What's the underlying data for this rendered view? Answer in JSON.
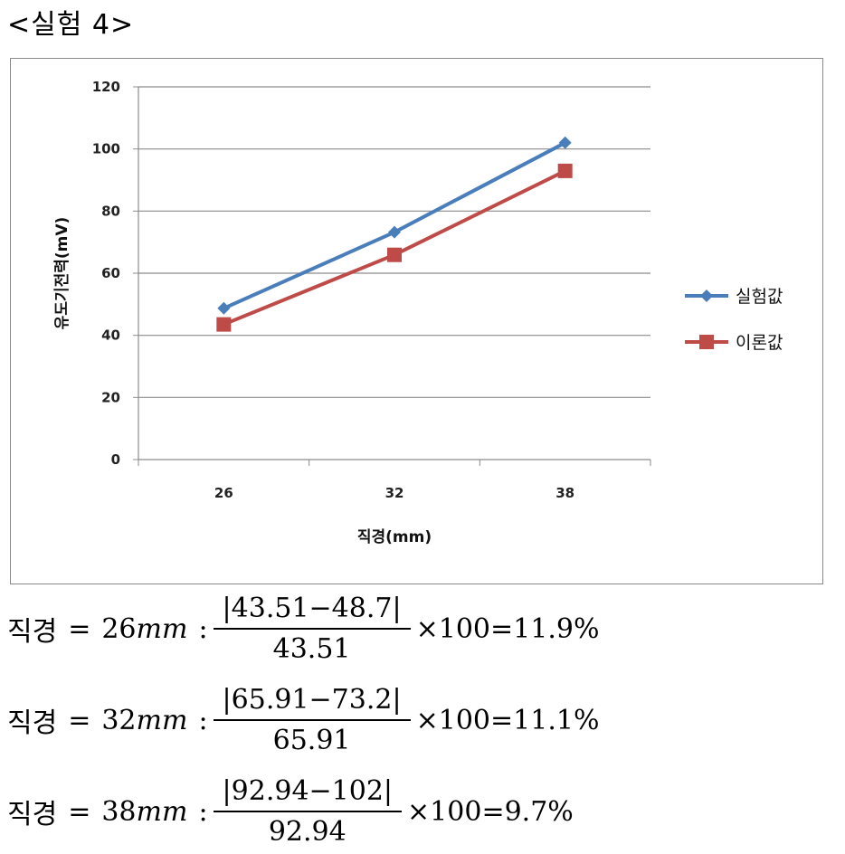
{
  "heading": "<실험 4>",
  "chart_data": {
    "type": "line",
    "categories": [
      "26",
      "32",
      "38"
    ],
    "series": [
      {
        "name": "실험값",
        "values": [
          48.7,
          73.2,
          102
        ],
        "color": "#4a7ebb",
        "marker": "diamond"
      },
      {
        "name": "이론값",
        "values": [
          43.51,
          65.91,
          92.94
        ],
        "color": "#be4b48",
        "marker": "square"
      }
    ],
    "xlabel": "직경(mm)",
    "ylabel": "유도기전력(mV)",
    "ylim": [
      0,
      120
    ],
    "yticks": [
      "0",
      "20",
      "40",
      "60",
      "80",
      "100",
      "120"
    ],
    "grid": true,
    "legend": "right"
  },
  "formulas": [
    {
      "label": "직경",
      "eq": "=",
      "num_val": "26",
      "unit": "mm",
      "colon": ":",
      "numerator": "|43.51−48.7|",
      "denominator": "43.51",
      "times": "×100",
      "eq2": "=",
      "result": "11.9%"
    },
    {
      "label": "직경",
      "eq": "=",
      "num_val": "32",
      "unit": "mm",
      "colon": ":",
      "numerator": "|65.91−73.2|",
      "denominator": "65.91",
      "times": "×100",
      "eq2": "=",
      "result": "11.1%"
    },
    {
      "label": "직경",
      "eq": "=",
      "num_val": "38",
      "unit": "mm",
      "colon": ":",
      "numerator": "|92.94−102|",
      "denominator": "92.94",
      "times": "×100",
      "eq2": "=",
      "result": "9.7%"
    }
  ]
}
